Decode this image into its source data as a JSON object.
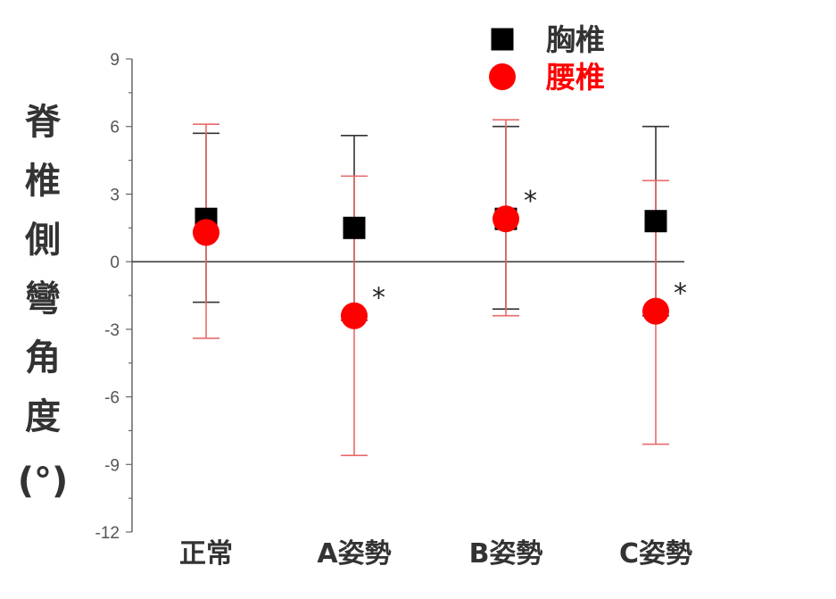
{
  "chart_data": {
    "type": "scatter",
    "title": "",
    "ylabel": "脊椎側彎角度(°)",
    "xlabel": "",
    "categories": [
      "正常",
      "A姿勢",
      "B姿勢",
      "C姿勢"
    ],
    "ylim": [
      -12,
      9
    ],
    "yticks": [
      9,
      6,
      3,
      0,
      -3,
      -6,
      -9,
      -12
    ],
    "zero_line": true,
    "grid": false,
    "legend_position": "top-right",
    "significance_marker": "*",
    "series": [
      {
        "name": "胸椎",
        "marker": "square",
        "color": "#000000",
        "values": [
          1.9,
          1.5,
          1.9,
          1.8
        ],
        "error_upper": [
          5.7,
          5.6,
          6.0,
          6.0
        ],
        "error_lower": [
          -1.8,
          -2.6,
          -2.1,
          -2.4
        ],
        "significant": [
          false,
          false,
          false,
          false
        ]
      },
      {
        "name": "腰椎",
        "marker": "circle",
        "color": "#ff0000",
        "errorbar_color": "#e86b6b",
        "values": [
          1.3,
          -2.4,
          1.9,
          -2.2
        ],
        "error_upper": [
          6.1,
          3.8,
          6.3,
          3.6
        ],
        "error_lower": [
          -3.4,
          -8.6,
          -2.4,
          -8.1
        ],
        "significant": [
          false,
          true,
          true,
          true
        ]
      }
    ]
  }
}
